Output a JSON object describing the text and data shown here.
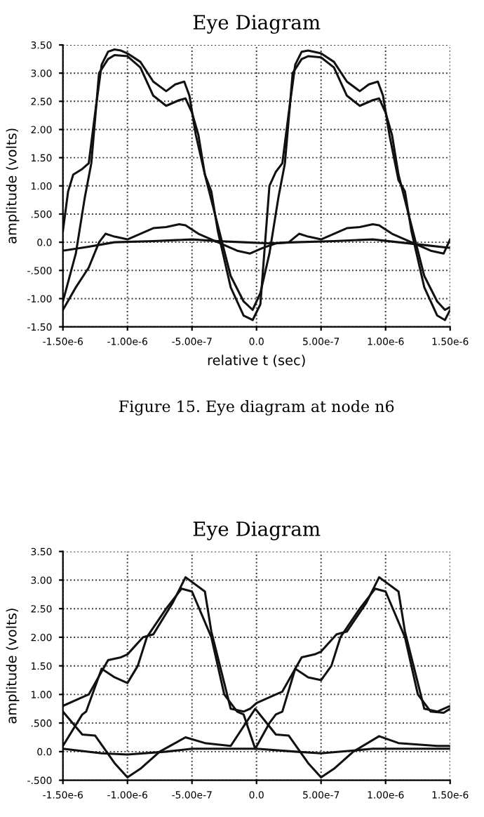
{
  "chart_data": [
    {
      "type": "line",
      "title": "Eye Diagram",
      "xlabel": "relative t (sec)",
      "ylabel": "amplitude (volts)",
      "annotations": [
        "Figure 15. Eye diagram at node n6"
      ],
      "xlim": [
        -1.5e-06,
        1.5e-06
      ],
      "ylim": [
        -1.5,
        3.5
      ],
      "xticks": [
        {
          "value": -1.5e-06,
          "label": "-1.50e-6"
        },
        {
          "value": -1e-06,
          "label": "-1.00e-6"
        },
        {
          "value": -5e-07,
          "label": "-5.00e-7"
        },
        {
          "value": 0,
          "label": "0.0"
        },
        {
          "value": 5e-07,
          "label": "5.00e-7"
        },
        {
          "value": 1e-06,
          "label": "1.00e-6"
        },
        {
          "value": 1.5e-06,
          "label": "1.50e-6"
        }
      ],
      "yticks": [
        {
          "value": -1.5,
          "label": "-1.50"
        },
        {
          "value": -1.0,
          "label": "-1.00"
        },
        {
          "value": -0.5,
          "label": "-.500"
        },
        {
          "value": 0,
          "label": "0.0"
        },
        {
          "value": 0.5,
          "label": ".500"
        },
        {
          "value": 1.0,
          "label": "1.00"
        },
        {
          "value": 1.5,
          "label": "1.50"
        },
        {
          "value": 2.0,
          "label": "2.00"
        },
        {
          "value": 2.5,
          "label": "2.50"
        },
        {
          "value": 3.0,
          "label": "3.00"
        },
        {
          "value": 3.5,
          "label": "3.50"
        }
      ],
      "grid": true,
      "marker": "none",
      "line_style": "solid",
      "series": [
        {
          "color": "#111111",
          "x": [
            -1.5e-06,
            -1.46e-06,
            -1.42e-06,
            -1.35e-06,
            -1.3e-06,
            -1.25e-06,
            -1.2e-06,
            -1.15e-06,
            -1.1e-06,
            -1.05e-06,
            -1e-06,
            -9e-07,
            -8e-07,
            -7e-07,
            -6.3e-07,
            -5.6e-07,
            -5.2e-07,
            -4.7e-07,
            -4e-07,
            -3.5e-07,
            -3e-07,
            -2e-07,
            -1e-07,
            -3e-08,
            3e-08,
            1e-07,
            1.5e-07,
            2e-07,
            2.5e-07,
            3e-07,
            3.5e-07,
            4e-07,
            5e-07,
            6e-07,
            7e-07,
            8e-07,
            8.7e-07,
            9.4e-07,
            9.8e-07,
            1.03e-06,
            1.1e-06,
            1.15e-06,
            1.2e-06,
            1.3e-06,
            1.4e-06,
            1.46e-06,
            1.5e-06
          ],
          "values": [
            0.2,
            0.9,
            1.2,
            1.3,
            1.4,
            2.3,
            3.15,
            3.38,
            3.42,
            3.4,
            3.35,
            3.2,
            2.85,
            2.68,
            2.8,
            2.85,
            2.6,
            1.9,
            1.2,
            0.9,
            0.2,
            -0.8,
            -1.3,
            -1.38,
            -1.1,
            1.0,
            1.25,
            1.4,
            2.3,
            3.15,
            3.38,
            3.4,
            3.35,
            3.2,
            2.85,
            2.68,
            2.8,
            2.85,
            2.6,
            1.9,
            1.1,
            0.9,
            0.2,
            -0.8,
            -1.3,
            -1.38,
            -1.2
          ]
        },
        {
          "color": "#111111",
          "x": [
            -1.5e-06,
            -1.4e-06,
            -1.33e-06,
            -1.28e-06,
            -1.22e-06,
            -1.15e-06,
            -1.1e-06,
            -1e-06,
            -9e-07,
            -8e-07,
            -7e-07,
            -6e-07,
            -5.5e-07,
            -5e-07,
            -4.5e-07,
            -4e-07,
            -3e-07,
            -2e-07,
            -1e-07,
            -3e-08,
            3e-08,
            1e-07,
            1.7e-07,
            2.2e-07,
            2.8e-07,
            3.5e-07,
            4e-07,
            5e-07,
            6e-07,
            7e-07,
            8e-07,
            9e-07,
            9.5e-07,
            1e-06,
            1.05e-06,
            1.1e-06,
            1.2e-06,
            1.3e-06,
            1.4e-06,
            1.46e-06,
            1.5e-06
          ],
          "values": [
            -1.05,
            -0.2,
            0.8,
            1.4,
            3.0,
            3.25,
            3.32,
            3.3,
            3.1,
            2.6,
            2.42,
            2.52,
            2.55,
            2.3,
            1.9,
            1.2,
            0.3,
            -0.6,
            -1.05,
            -1.2,
            -0.9,
            -0.2,
            0.8,
            1.4,
            3.0,
            3.25,
            3.3,
            3.28,
            3.1,
            2.6,
            2.42,
            2.52,
            2.55,
            2.3,
            1.9,
            1.2,
            0.3,
            -0.6,
            -1.05,
            -1.2,
            -1.15
          ]
        },
        {
          "color": "#111111",
          "x": [
            -1.5e-06,
            -1.4e-06,
            -1.3e-06,
            -1.22e-06,
            -1.17e-06,
            -1.1e-06,
            -1e-06,
            -9e-07,
            -8e-07,
            -7e-07,
            -6e-07,
            -5.5e-07,
            -4.5e-07,
            -3e-07,
            -1.5e-07,
            -5e-08,
            5e-08,
            1.5e-07,
            2.5e-07,
            3.3e-07,
            4e-07,
            5e-07,
            6e-07,
            7e-07,
            8e-07,
            9e-07,
            9.5e-07,
            1.05e-06,
            1.2e-06,
            1.35e-06,
            1.45e-06,
            1.5e-06
          ],
          "values": [
            -1.2,
            -0.8,
            -0.45,
            0.0,
            0.15,
            0.1,
            0.05,
            0.15,
            0.25,
            0.27,
            0.32,
            0.3,
            0.15,
            0.0,
            -0.15,
            -0.2,
            -0.1,
            -0.02,
            0.0,
            0.15,
            0.1,
            0.05,
            0.15,
            0.25,
            0.27,
            0.32,
            0.3,
            0.15,
            0.0,
            -0.15,
            -0.2,
            0.05
          ]
        },
        {
          "color": "#111111",
          "x": [
            -1.5e-06,
            -1.3e-06,
            -1.1e-06,
            -8e-07,
            -5e-07,
            -3e-07,
            -1e-07,
            1e-07,
            3e-07,
            6e-07,
            9e-07,
            1.1e-06,
            1.3e-06,
            1.5e-06
          ],
          "values": [
            -0.15,
            -0.08,
            0.0,
            0.02,
            0.05,
            0.02,
            0.0,
            -0.02,
            0.0,
            0.02,
            0.05,
            0.0,
            -0.05,
            -0.1
          ]
        }
      ]
    },
    {
      "type": "line",
      "title": "Eye Diagram",
      "ylabel": "amplitude (volts)",
      "xlim": [
        -1.5e-06,
        1.5e-06
      ],
      "ylim": [
        -0.5,
        3.5
      ],
      "xticks": [
        {
          "value": -1.5e-06,
          "label": "-1.50e-6"
        },
        {
          "value": -1e-06,
          "label": "-1.00e-6"
        },
        {
          "value": -5e-07,
          "label": "-5.00e-7"
        },
        {
          "value": 0,
          "label": "0.0"
        },
        {
          "value": 5e-07,
          "label": "5.00e-7"
        },
        {
          "value": 1e-06,
          "label": "1.00e-6"
        },
        {
          "value": 1.5e-06,
          "label": "1.50e-6"
        }
      ],
      "yticks": [
        {
          "value": -0.5,
          "label": "-.500"
        },
        {
          "value": 0,
          "label": "0.0"
        },
        {
          "value": 0.5,
          "label": ".500"
        },
        {
          "value": 1.0,
          "label": "1.00"
        },
        {
          "value": 1.5,
          "label": "1.50"
        },
        {
          "value": 2.0,
          "label": "2.00"
        },
        {
          "value": 2.5,
          "label": "2.50"
        },
        {
          "value": 3.0,
          "label": "3.00"
        },
        {
          "value": 3.5,
          "label": "3.50"
        }
      ],
      "grid": true,
      "marker": "none",
      "line_style": "solid",
      "series": [
        {
          "color": "#111111",
          "x": [
            -1.5e-06,
            -1.35e-06,
            -1.3e-06,
            -1.2e-06,
            -1.15e-06,
            -1.05e-06,
            -1e-06,
            -8.8e-07,
            -8e-07,
            -6.5e-07,
            -5.5e-07,
            -4e-07,
            -3.5e-07,
            -2.5e-07,
            -2e-07,
            -1e-07,
            -5e-08,
            0,
            1.5e-07,
            2e-07,
            3e-07,
            3.5e-07,
            4.5e-07,
            5e-07,
            6.2e-07,
            7e-07,
            8.5e-07,
            9.5e-07,
            1.1e-06,
            1.15e-06,
            1.25e-06,
            1.3e-06,
            1.4e-06,
            1.5e-06
          ],
          "values": [
            0.8,
            0.95,
            1.0,
            1.4,
            1.6,
            1.65,
            1.7,
            2.0,
            2.05,
            2.6,
            3.05,
            2.8,
            2.1,
            1.2,
            0.75,
            0.7,
            0.75,
            0.85,
            1.0,
            1.05,
            1.45,
            1.65,
            1.7,
            1.75,
            2.05,
            2.1,
            2.6,
            3.05,
            2.8,
            2.1,
            1.2,
            0.75,
            0.7,
            0.8
          ]
        },
        {
          "color": "#111111",
          "x": [
            -1.5e-06,
            -1.35e-06,
            -1.32e-06,
            -1.2e-06,
            -1.1e-06,
            -1e-06,
            -9.2e-07,
            -8.5e-07,
            -7e-07,
            -5.8e-07,
            -5e-07,
            -3.5e-07,
            -2.5e-07,
            -1.5e-07,
            -1e-07,
            -1e-08,
            1e-07,
            1.5e-07,
            2e-07,
            3e-07,
            4e-07,
            5e-07,
            5.8e-07,
            6.5e-07,
            8e-07,
            9.2e-07,
            1e-06,
            1.15e-06,
            1.25e-06,
            1.35e-06,
            1.45e-06,
            1.5e-06
          ],
          "values": [
            0.1,
            0.65,
            0.7,
            1.45,
            1.3,
            1.2,
            1.5,
            2.0,
            2.5,
            2.85,
            2.8,
            2.0,
            1.0,
            0.7,
            0.65,
            0.05,
            0.5,
            0.65,
            0.7,
            1.45,
            1.3,
            1.25,
            1.5,
            2.0,
            2.5,
            2.85,
            2.8,
            2.0,
            1.0,
            0.7,
            0.68,
            0.75
          ]
        },
        {
          "color": "#111111",
          "x": [
            -1.5e-06,
            -1.35e-06,
            -1.25e-06,
            -1.1e-06,
            -1e-06,
            -9e-07,
            -7.5e-07,
            -5.5e-07,
            -4e-07,
            -2e-07,
            -1e-08,
            1.5e-07,
            2.5e-07,
            4e-07,
            5e-07,
            6e-07,
            7.5e-07,
            9.5e-07,
            1.1e-06,
            1.4e-06,
            1.5e-06
          ],
          "values": [
            0.7,
            0.3,
            0.28,
            -0.2,
            -0.45,
            -0.3,
            0.0,
            0.25,
            0.15,
            0.1,
            0.75,
            0.3,
            0.28,
            -0.2,
            -0.45,
            -0.3,
            0.0,
            0.27,
            0.15,
            0.1,
            0.1
          ]
        },
        {
          "color": "#111111",
          "x": [
            -1.5e-06,
            -1.2e-06,
            -1e-06,
            -7e-07,
            -5e-07,
            0,
            3e-07,
            5e-07,
            9e-07,
            1.5e-06
          ],
          "values": [
            0.05,
            -0.03,
            -0.05,
            0.0,
            0.05,
            0.05,
            0.0,
            -0.03,
            0.05,
            0.05
          ]
        }
      ]
    }
  ]
}
